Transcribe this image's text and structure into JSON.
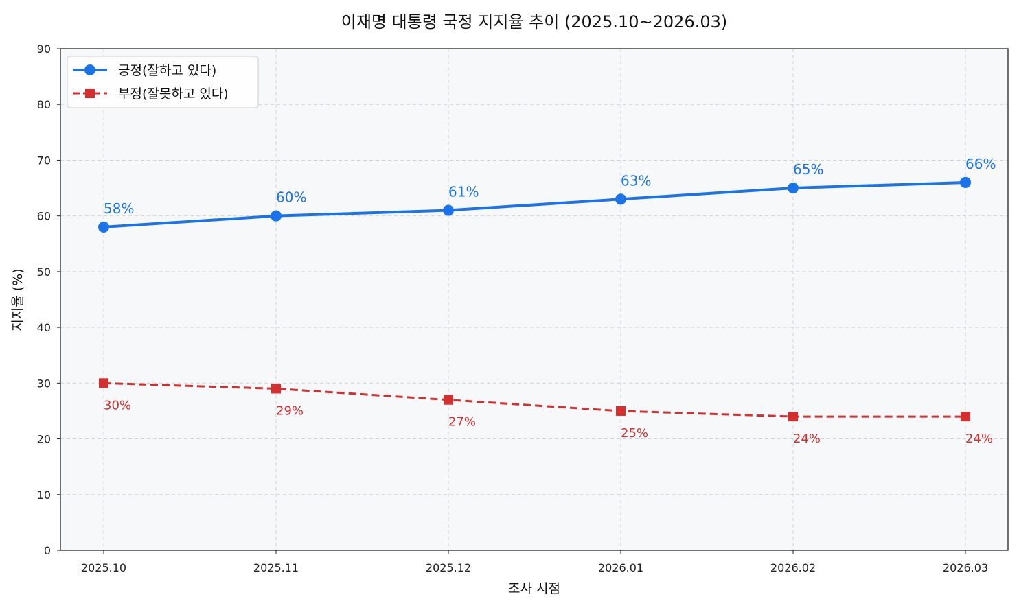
{
  "chart_data": {
    "type": "line",
    "title": "이재명 대통령 국정 지지율 추이 (2025.10~2026.03)",
    "xlabel": "조사 시점",
    "ylabel": "지지율 (%)",
    "categories": [
      "2025.10",
      "2025.11",
      "2025.12",
      "2026.01",
      "2026.02",
      "2026.03"
    ],
    "ylim": [
      0,
      90
    ],
    "yticks": [
      0,
      10,
      20,
      30,
      40,
      50,
      60,
      70,
      80,
      90
    ],
    "grid": true,
    "legend_position": "top-left",
    "series": [
      {
        "name": "긍정(잘하고 있다)",
        "values": [
          58,
          60,
          61,
          63,
          65,
          66
        ],
        "color": "#1a73e8",
        "line_style": "solid",
        "marker": "circle",
        "label_position": "above"
      },
      {
        "name": "부정(잘못하고 있다)",
        "values": [
          30,
          29,
          27,
          25,
          24,
          24
        ],
        "color": "#d32f2f",
        "line_style": "dashed",
        "marker": "square",
        "label_position": "below"
      }
    ],
    "value_label_suffix": "%",
    "plot_background": "#f7f8fa"
  }
}
